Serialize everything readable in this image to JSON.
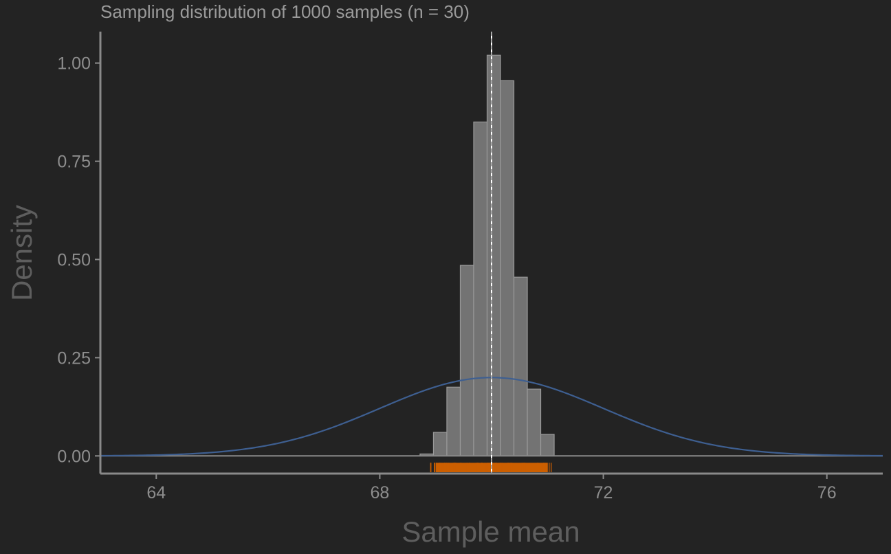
{
  "chart_data": {
    "type": "histogram",
    "title": "Sampling distribution of 1000 samples (n = 30)",
    "xlabel": "Sample mean",
    "ylabel": "Density",
    "xlim": [
      63,
      77
    ],
    "ylim": [
      -0.045,
      1.08
    ],
    "x_ticks": [
      64,
      68,
      72,
      76
    ],
    "x_tick_labels": [
      "64",
      "68",
      "72",
      "76"
    ],
    "y_ticks": [
      0,
      0.25,
      0.5,
      0.75,
      1.0
    ],
    "y_tick_labels": [
      "0.00",
      "0.25",
      "0.50",
      "0.75",
      "1.00"
    ],
    "grid": false,
    "histogram": {
      "bin_width": 0.24,
      "bins": [
        {
          "x0": 68.72,
          "x1": 68.96,
          "density": 0.005
        },
        {
          "x0": 68.96,
          "x1": 69.2,
          "density": 0.06
        },
        {
          "x0": 69.2,
          "x1": 69.44,
          "density": 0.175
        },
        {
          "x0": 69.44,
          "x1": 69.68,
          "density": 0.485
        },
        {
          "x0": 69.68,
          "x1": 69.92,
          "density": 0.85
        },
        {
          "x0": 69.92,
          "x1": 70.16,
          "density": 1.02
        },
        {
          "x0": 70.16,
          "x1": 70.4,
          "density": 0.955
        },
        {
          "x0": 70.4,
          "x1": 70.64,
          "density": 0.455
        },
        {
          "x0": 70.64,
          "x1": 70.88,
          "density": 0.17
        },
        {
          "x0": 70.88,
          "x1": 71.12,
          "density": 0.055
        }
      ],
      "fill": "#737373",
      "stroke": "#9a9a9a"
    },
    "normal_curve": {
      "mean": 70,
      "sd": 2,
      "color": "#3e5f91"
    },
    "reference_line": {
      "x": 70,
      "color": "#ffffff"
    },
    "rug": {
      "x_min": 68.8,
      "x_max": 71.1,
      "dense_from": 69.0,
      "dense_to": 71.0,
      "color": "#cc5f00"
    },
    "colors": {
      "background": "#232323",
      "axis": "#8a8a8a"
    }
  }
}
